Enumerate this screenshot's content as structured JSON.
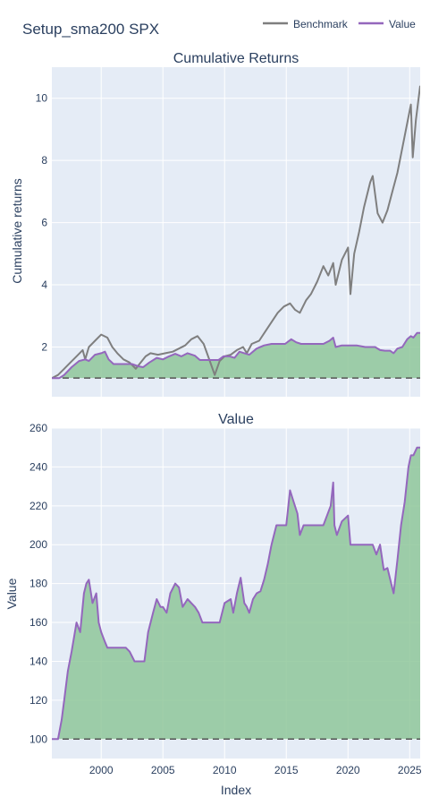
{
  "title": "Setup_sma200 SPX",
  "legend": {
    "placement": "top-right",
    "items": [
      {
        "name": "Benchmark",
        "color": "#7f7f7f"
      },
      {
        "name": "Value",
        "color": "#9467bd"
      }
    ]
  },
  "colors": {
    "plot_bg": "#e5ecf6",
    "fill": "#8fc79a",
    "fill_under": "#5f8f63",
    "baseline": "#555555"
  },
  "chart_data": [
    {
      "type": "line",
      "title": "Cumulative Returns",
      "xlabel": "",
      "ylabel": "Cumulative returns",
      "xlim": [
        1996.0,
        2025.85
      ],
      "ylim": [
        0.4,
        11.0
      ],
      "yticks": [
        2,
        4,
        6,
        8,
        10
      ],
      "grid": true,
      "baseline": 1,
      "series": [
        {
          "name": "Benchmark",
          "x": [
            1996.0,
            1996.5,
            1997.0,
            1997.5,
            1998.0,
            1998.5,
            1998.7,
            1999.0,
            1999.5,
            2000.0,
            2000.5,
            2000.9,
            2001.3,
            2001.8,
            2002.3,
            2002.8,
            2003.2,
            2003.6,
            2004.0,
            2004.6,
            2005.2,
            2005.8,
            2006.3,
            2006.8,
            2007.3,
            2007.8,
            2008.3,
            2008.8,
            2009.2,
            2009.6,
            2010.0,
            2010.5,
            2011.0,
            2011.5,
            2011.8,
            2012.2,
            2012.8,
            2013.3,
            2013.8,
            2014.3,
            2014.8,
            2015.3,
            2015.7,
            2016.1,
            2016.6,
            2017.0,
            2017.5,
            2018.0,
            2018.4,
            2018.8,
            2019.0,
            2019.5,
            2020.0,
            2020.2,
            2020.5,
            2020.9,
            2021.3,
            2021.8,
            2022.0,
            2022.4,
            2022.8,
            2023.2,
            2023.6,
            2024.0,
            2024.4,
            2024.8,
            2025.1,
            2025.25,
            2025.5,
            2025.85
          ],
          "y": [
            1.0,
            1.1,
            1.3,
            1.5,
            1.7,
            1.9,
            1.6,
            2.0,
            2.2,
            2.4,
            2.3,
            2.0,
            1.8,
            1.6,
            1.5,
            1.3,
            1.5,
            1.7,
            1.8,
            1.75,
            1.8,
            1.85,
            1.95,
            2.05,
            2.25,
            2.35,
            2.1,
            1.55,
            1.1,
            1.55,
            1.7,
            1.75,
            1.9,
            2.0,
            1.8,
            2.1,
            2.2,
            2.5,
            2.8,
            3.1,
            3.3,
            3.4,
            3.2,
            3.1,
            3.5,
            3.7,
            4.1,
            4.6,
            4.3,
            4.7,
            4.0,
            4.8,
            5.2,
            3.7,
            5.0,
            5.7,
            6.5,
            7.3,
            7.5,
            6.3,
            6.0,
            6.4,
            7.0,
            7.6,
            8.4,
            9.2,
            9.8,
            8.1,
            9.3,
            10.4
          ]
        },
        {
          "name": "Value",
          "x": [
            1996.0,
            1996.6,
            1997.0,
            1997.6,
            1998.2,
            1998.7,
            1999.0,
            1999.5,
            2000.0,
            2000.3,
            2000.6,
            2001.0,
            2001.5,
            2002.0,
            2002.5,
            2003.0,
            2003.4,
            2003.9,
            2004.5,
            2005.0,
            2005.5,
            2006.0,
            2006.5,
            2007.0,
            2007.6,
            2008.0,
            2008.5,
            2009.0,
            2009.5,
            2009.9,
            2010.4,
            2010.8,
            2011.2,
            2011.6,
            2012.0,
            2012.6,
            2013.2,
            2013.8,
            2014.4,
            2014.9,
            2015.4,
            2015.8,
            2016.2,
            2016.8,
            2017.5,
            2018.0,
            2018.5,
            2018.8,
            2019.0,
            2019.5,
            2020.0,
            2020.3,
            2020.7,
            2021.4,
            2021.9,
            2022.2,
            2022.6,
            2023.0,
            2023.4,
            2023.7,
            2024.0,
            2024.4,
            2024.8,
            2025.1,
            2025.3,
            2025.6,
            2025.85
          ],
          "y": [
            1.0,
            1.0,
            1.1,
            1.35,
            1.55,
            1.6,
            1.55,
            1.75,
            1.8,
            1.85,
            1.6,
            1.45,
            1.45,
            1.45,
            1.45,
            1.38,
            1.35,
            1.5,
            1.65,
            1.6,
            1.7,
            1.78,
            1.7,
            1.8,
            1.72,
            1.58,
            1.58,
            1.58,
            1.58,
            1.7,
            1.7,
            1.65,
            1.85,
            1.8,
            1.75,
            1.95,
            2.05,
            2.1,
            2.1,
            2.1,
            2.25,
            2.15,
            2.1,
            2.1,
            2.1,
            2.1,
            2.2,
            2.3,
            2.0,
            2.05,
            2.05,
            2.05,
            2.05,
            2.0,
            2.0,
            2.0,
            1.9,
            1.88,
            1.88,
            1.8,
            1.95,
            2.0,
            2.25,
            2.35,
            2.3,
            2.45,
            2.45
          ]
        }
      ]
    },
    {
      "type": "area",
      "title": "Value",
      "xlabel": "Index",
      "ylabel": "Value",
      "xlim": [
        1996.0,
        2025.85
      ],
      "xticks": [
        2000,
        2005,
        2010,
        2015,
        2020,
        2025
      ],
      "ylim": [
        90,
        260
      ],
      "yticks": [
        100,
        120,
        140,
        160,
        180,
        200,
        220,
        240,
        260
      ],
      "grid": true,
      "baseline": 100,
      "series": [
        {
          "name": "Value",
          "x": [
            1996.0,
            1996.5,
            1996.8,
            1997.0,
            1997.3,
            1997.6,
            1998.0,
            1998.3,
            1998.6,
            1998.8,
            1999.0,
            1999.3,
            1999.6,
            1999.8,
            2000.0,
            2000.3,
            2000.5,
            2000.7,
            2001.0,
            2001.5,
            2002.0,
            2002.3,
            2002.7,
            2003.0,
            2003.3,
            2003.5,
            2003.8,
            2004.2,
            2004.5,
            2004.8,
            2005.0,
            2005.3,
            2005.6,
            2006.0,
            2006.3,
            2006.6,
            2007.0,
            2007.3,
            2007.6,
            2007.9,
            2008.2,
            2008.7,
            2009.0,
            2009.3,
            2009.6,
            2010.0,
            2010.5,
            2010.7,
            2011.0,
            2011.3,
            2011.6,
            2011.8,
            2012.0,
            2012.3,
            2012.6,
            2012.9,
            2013.2,
            2013.5,
            2013.8,
            2014.2,
            2014.7,
            2015.0,
            2015.3,
            2015.6,
            2015.9,
            2016.1,
            2016.4,
            2016.8,
            2017.2,
            2017.6,
            2018.0,
            2018.3,
            2018.6,
            2018.8,
            2018.9,
            2019.1,
            2019.5,
            2020.0,
            2020.2,
            2020.5,
            2021.0,
            2021.5,
            2022.0,
            2022.3,
            2022.6,
            2022.9,
            2023.2,
            2023.5,
            2023.7,
            2024.0,
            2024.3,
            2024.6,
            2024.9,
            2025.1,
            2025.3,
            2025.6,
            2025.85
          ],
          "y": [
            100,
            100,
            110,
            120,
            135,
            145,
            160,
            155,
            175,
            180,
            182,
            170,
            175,
            160,
            155,
            150,
            147,
            147,
            147,
            147,
            147,
            145,
            140,
            140,
            140,
            140,
            155,
            165,
            172,
            168,
            168,
            165,
            175,
            180,
            178,
            168,
            172,
            170,
            168,
            165,
            160,
            160,
            160,
            160,
            160,
            170,
            172,
            165,
            175,
            183,
            170,
            168,
            165,
            172,
            175,
            176,
            182,
            190,
            200,
            210,
            210,
            210,
            228,
            222,
            216,
            205,
            210,
            210,
            210,
            210,
            210,
            215,
            220,
            232,
            210,
            205,
            212,
            215,
            200,
            200,
            200,
            200,
            200,
            195,
            200,
            187,
            188,
            180,
            175,
            192,
            210,
            222,
            240,
            246,
            246,
            250,
            250
          ]
        }
      ]
    }
  ]
}
